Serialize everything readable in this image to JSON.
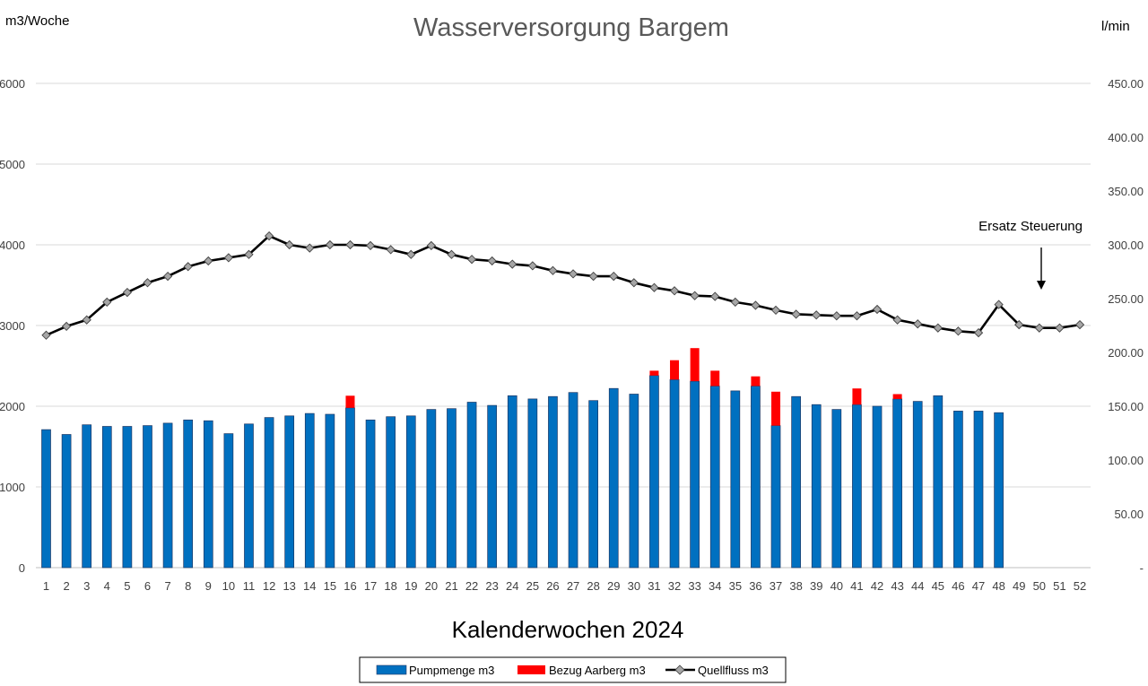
{
  "chart_data": {
    "type": "bar",
    "title": "Wasserversorgung Bargem",
    "ylabel_left": "m3/Woche",
    "ylabel_right": "l/min",
    "xlabel": "Kalenderwochen 2024",
    "annotation": "Ersatz Steuerung",
    "annotation_at_week": 50,
    "ylim_left": [
      0,
      6000
    ],
    "ylim_right": [
      0,
      450
    ],
    "left_ticks": [
      "0",
      "1000",
      "2000",
      "3000",
      "4000",
      "5000",
      "6000"
    ],
    "right_ticks": [
      "-",
      "50.00",
      "100.00",
      "150.00",
      "200.00",
      "250.00",
      "300.00",
      "350.00",
      "400.00",
      "450.00"
    ],
    "categories": [
      "1",
      "2",
      "3",
      "4",
      "5",
      "6",
      "7",
      "8",
      "9",
      "10",
      "11",
      "12",
      "13",
      "14",
      "15",
      "16",
      "17",
      "18",
      "19",
      "20",
      "21",
      "22",
      "23",
      "24",
      "25",
      "26",
      "27",
      "28",
      "29",
      "30",
      "31",
      "32",
      "33",
      "34",
      "35",
      "36",
      "37",
      "38",
      "39",
      "40",
      "41",
      "42",
      "43",
      "44",
      "45",
      "46",
      "47",
      "48",
      "49",
      "50",
      "51",
      "52"
    ],
    "stacked": true,
    "grid": true,
    "legend_position": "bottom",
    "series": [
      {
        "name": "Pumpmenge m3",
        "type": "bar",
        "axis": "left",
        "color": "#0070C0",
        "values": [
          1710,
          1650,
          1770,
          1750,
          1750,
          1760,
          1790,
          1830,
          1820,
          1660,
          1780,
          1860,
          1880,
          1910,
          1900,
          1980,
          1830,
          1870,
          1880,
          1960,
          1970,
          2050,
          2010,
          2130,
          2090,
          2120,
          2170,
          2070,
          2220,
          2150,
          2380,
          2330,
          2310,
          2250,
          2190,
          2250,
          1760,
          2120,
          2020,
          1960,
          2020,
          2000,
          2090,
          2060,
          2130,
          1940,
          1940,
          1920,
          null,
          null,
          null,
          null
        ]
      },
      {
        "name": "Bezug Aarberg m3",
        "type": "bar",
        "axis": "left",
        "color": "#FF0000",
        "values": [
          0,
          0,
          0,
          0,
          0,
          0,
          0,
          0,
          0,
          0,
          0,
          0,
          0,
          0,
          0,
          150,
          0,
          0,
          0,
          0,
          0,
          0,
          0,
          0,
          0,
          0,
          0,
          0,
          0,
          0,
          60,
          240,
          410,
          190,
          0,
          120,
          420,
          0,
          0,
          0,
          200,
          0,
          60,
          0,
          0,
          0,
          0,
          0,
          null,
          null,
          null,
          null
        ]
      },
      {
        "name": "Quellfluss m3",
        "type": "line",
        "axis": "left",
        "color": "#000000",
        "marker_color": "#A6A6A6",
        "values": [
          2880,
          2990,
          3070,
          3290,
          3410,
          3530,
          3610,
          3730,
          3800,
          3840,
          3880,
          4110,
          4000,
          3960,
          4000,
          4000,
          3990,
          3940,
          3880,
          3990,
          3880,
          3820,
          3800,
          3760,
          3740,
          3680,
          3640,
          3610,
          3610,
          3530,
          3470,
          3430,
          3370,
          3360,
          3290,
          3250,
          3190,
          3140,
          3130,
          3120,
          3120,
          3200,
          3070,
          3020,
          2970,
          2930,
          2910,
          3260,
          3010,
          2970,
          2970,
          3010
        ]
      }
    ]
  }
}
